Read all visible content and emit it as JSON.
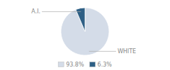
{
  "chart_data": {
    "type": "pie",
    "categories": [
      "WHITE",
      "A.I."
    ],
    "values": [
      93.8,
      6.3
    ],
    "value_labels": [
      "93.8%",
      "6.3%"
    ],
    "colors": [
      "#d4dce8",
      "#2e5f85"
    ],
    "legend": "bottom"
  }
}
